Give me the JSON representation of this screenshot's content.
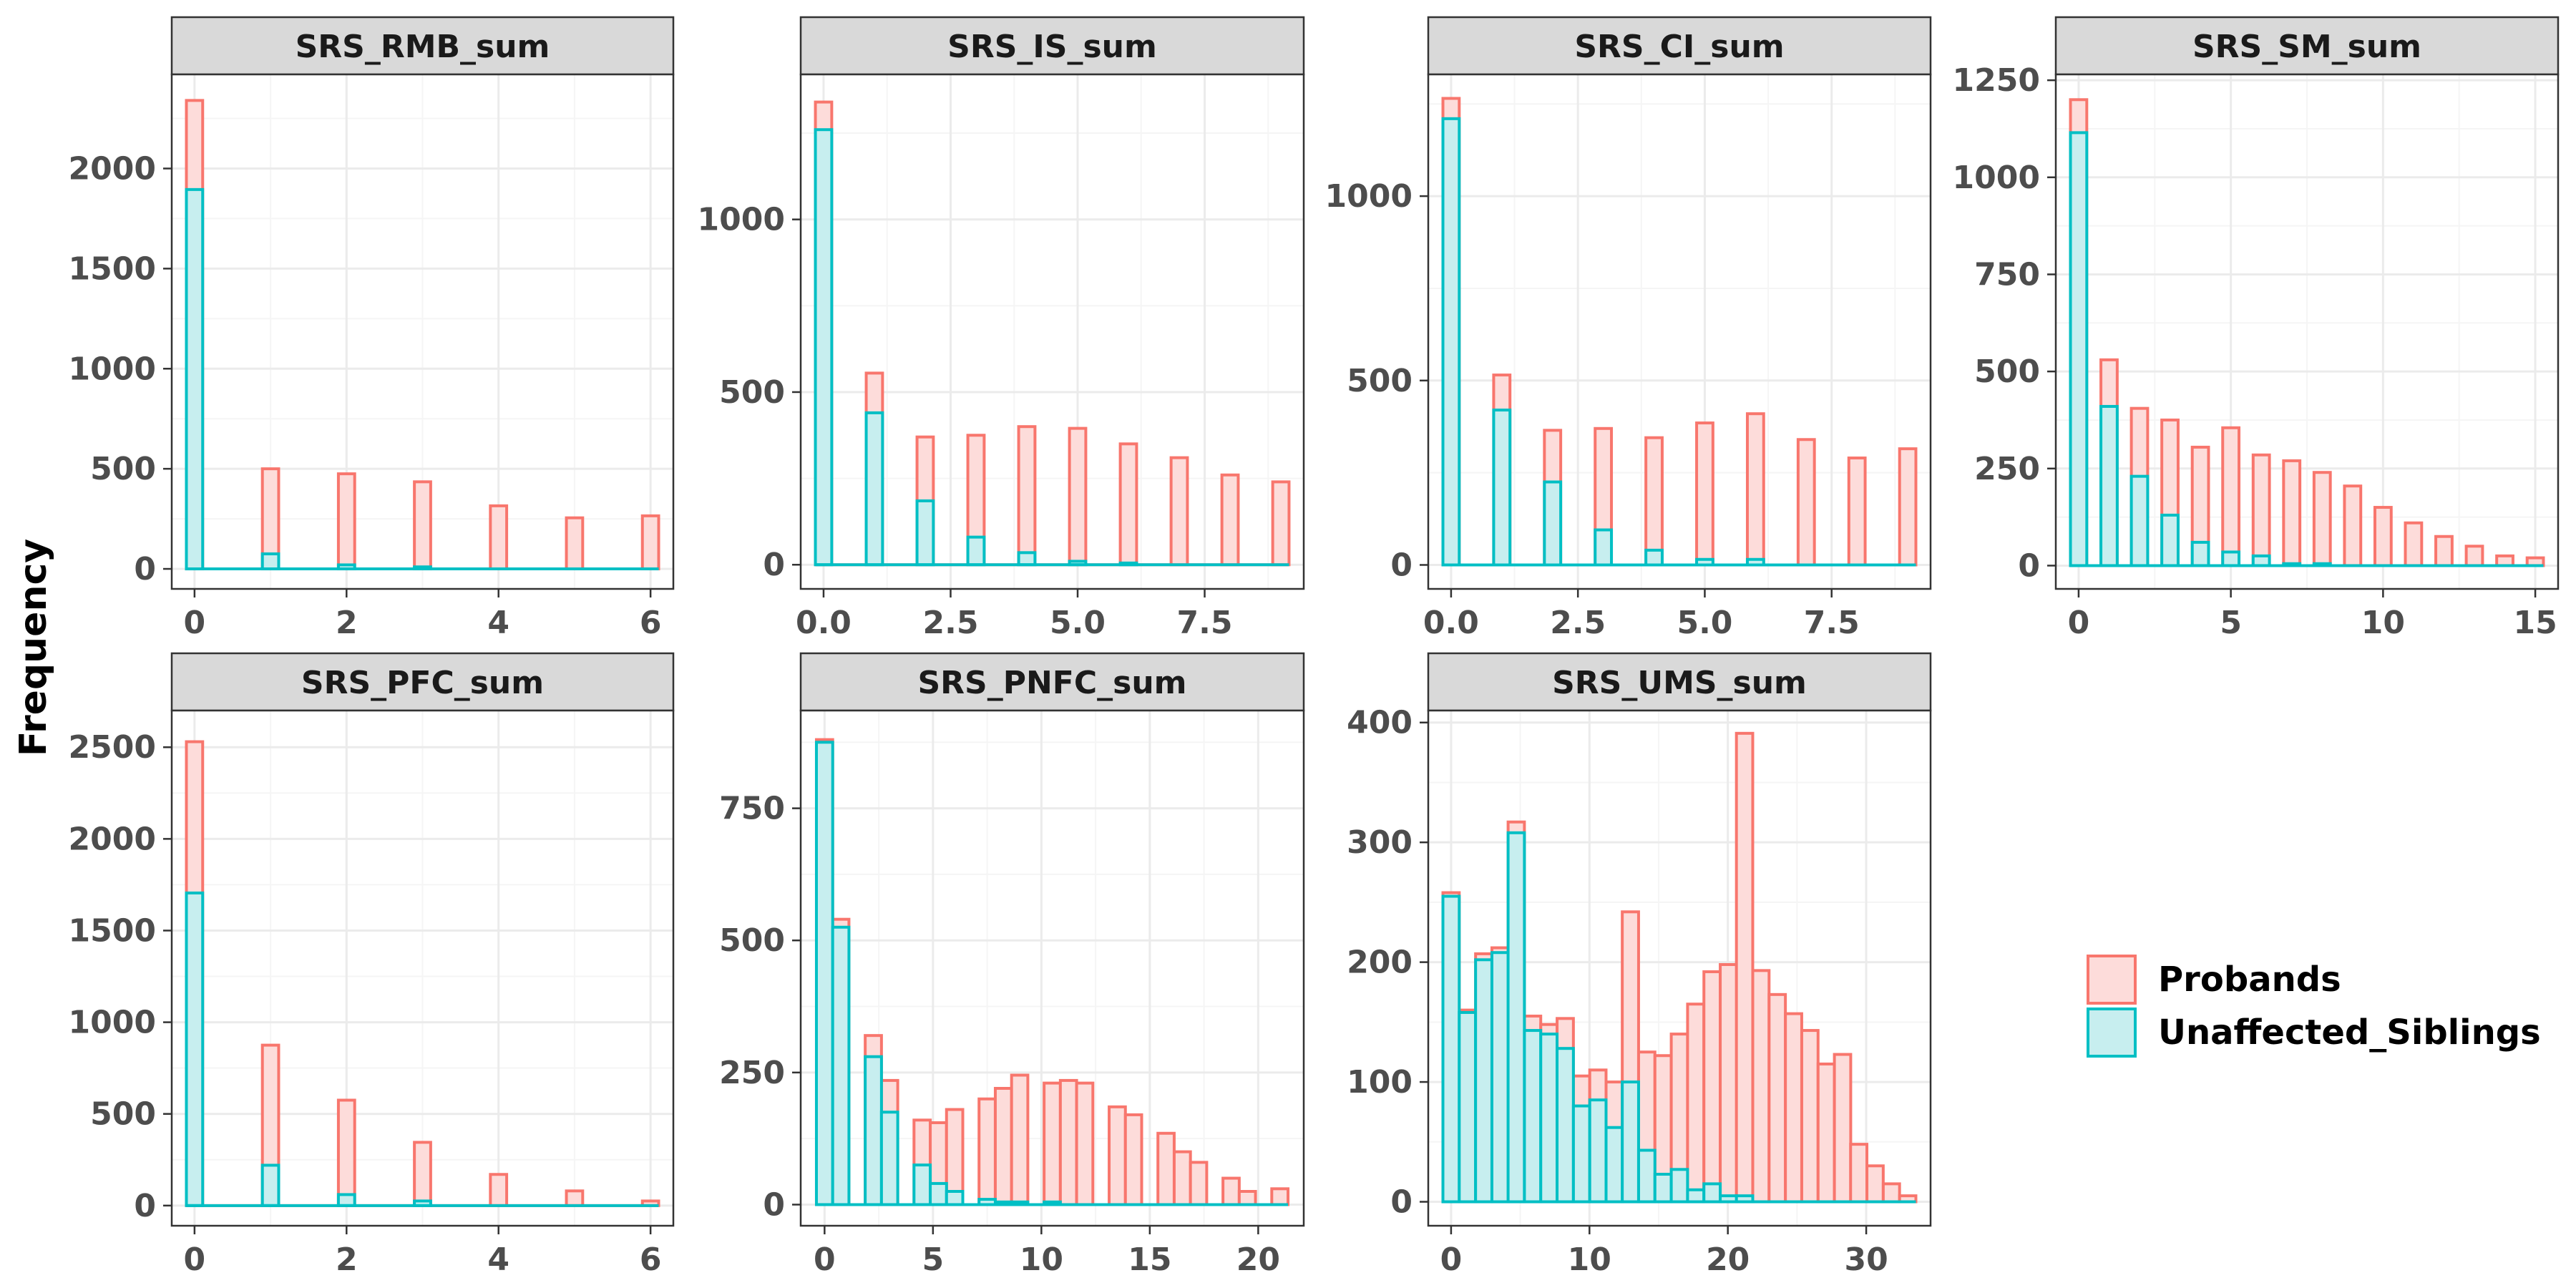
{
  "colors": {
    "probands_line": "#F8766D",
    "probands_fill": "#FDDCDA",
    "siblings_line": "#00BFC4",
    "siblings_fill": "#C7EEEF",
    "strip_bg": "#D9D9D9",
    "grid_major": "#EBEBEB",
    "grid_minor": "#F5F5F5",
    "panel_border": "#333333",
    "tick_label": "#4D4D4D"
  },
  "y_axis_title": "Frequency",
  "legend": {
    "placement": "right",
    "entries": [
      "Probands",
      "Unaffected_Siblings"
    ]
  },
  "chart_data": [
    {
      "type": "bar",
      "title": "SRS_RMB_sum",
      "xlim": [
        -0.3,
        6.3
      ],
      "ylim": [
        -100,
        2470
      ],
      "xticks": [
        {
          "v": 0,
          "label": "0"
        },
        {
          "v": 2,
          "label": "2"
        },
        {
          "v": 4,
          "label": "4"
        },
        {
          "v": 6,
          "label": "6"
        }
      ],
      "yticks": [
        {
          "v": 0,
          "label": "0"
        },
        {
          "v": 500,
          "label": "500"
        },
        {
          "v": 1000,
          "label": "1000"
        },
        {
          "v": 1500,
          "label": "1500"
        },
        {
          "v": 2000,
          "label": "2000"
        }
      ],
      "bin_width": 0.2143,
      "x": [
        0,
        1,
        2,
        3,
        4,
        5,
        6
      ],
      "series": [
        {
          "name": "Probands",
          "values": [
            2340,
            500,
            475,
            435,
            315,
            255,
            265
          ]
        },
        {
          "name": "Unaffected_Siblings",
          "values": [
            1895,
            75,
            20,
            10,
            0,
            0,
            0
          ]
        }
      ]
    },
    {
      "type": "bar",
      "title": "SRS_IS_sum",
      "xlim": [
        -0.45,
        9.45
      ],
      "ylim": [
        -70,
        1420
      ],
      "xticks": [
        {
          "v": 0,
          "label": "0.0"
        },
        {
          "v": 2.5,
          "label": "2.5"
        },
        {
          "v": 5,
          "label": "5.0"
        },
        {
          "v": 7.5,
          "label": "7.5"
        }
      ],
      "yticks": [
        {
          "v": 0,
          "label": "0"
        },
        {
          "v": 500,
          "label": "500"
        },
        {
          "v": 1000,
          "label": "1000"
        }
      ],
      "bin_width": 0.3214,
      "x": [
        0,
        1,
        2,
        3,
        4,
        5,
        6,
        7,
        8,
        9
      ],
      "series": [
        {
          "name": "Probands",
          "values": [
            1340,
            555,
            370,
            375,
            400,
            395,
            350,
            310,
            260,
            240
          ]
        },
        {
          "name": "Unaffected_Siblings",
          "values": [
            1260,
            440,
            185,
            80,
            35,
            10,
            5,
            0,
            0,
            0
          ]
        }
      ]
    },
    {
      "type": "bar",
      "title": "SRS_CI_sum",
      "xlim": [
        -0.45,
        9.45
      ],
      "ylim": [
        -65,
        1330
      ],
      "xticks": [
        {
          "v": 0,
          "label": "0.0"
        },
        {
          "v": 2.5,
          "label": "2.5"
        },
        {
          "v": 5,
          "label": "5.0"
        },
        {
          "v": 7.5,
          "label": "7.5"
        }
      ],
      "yticks": [
        {
          "v": 0,
          "label": "0"
        },
        {
          "v": 500,
          "label": "500"
        },
        {
          "v": 1000,
          "label": "1000"
        }
      ],
      "bin_width": 0.3214,
      "x": [
        0,
        1,
        2,
        3,
        4,
        5,
        6,
        7,
        8,
        9
      ],
      "series": [
        {
          "name": "Probands",
          "values": [
            1265,
            515,
            365,
            370,
            345,
            385,
            410,
            340,
            290,
            315
          ]
        },
        {
          "name": "Unaffected_Siblings",
          "values": [
            1210,
            420,
            225,
            95,
            40,
            15,
            15,
            0,
            0,
            0
          ]
        }
      ]
    },
    {
      "type": "bar",
      "title": "SRS_SM_sum",
      "xlim": [
        -0.75,
        15.75
      ],
      "ylim": [
        -60,
        1265
      ],
      "xticks": [
        {
          "v": 0,
          "label": "0"
        },
        {
          "v": 5,
          "label": "5"
        },
        {
          "v": 10,
          "label": "10"
        },
        {
          "v": 15,
          "label": "15"
        }
      ],
      "yticks": [
        {
          "v": 0,
          "label": "0"
        },
        {
          "v": 250,
          "label": "250"
        },
        {
          "v": 500,
          "label": "500"
        },
        {
          "v": 750,
          "label": "750"
        },
        {
          "v": 1000,
          "label": "1000"
        },
        {
          "v": 1250,
          "label": "1250"
        }
      ],
      "bin_width": 0.5357,
      "x": [
        0,
        1,
        2,
        3,
        4,
        5,
        6,
        7,
        8,
        9,
        10,
        11,
        12,
        13,
        14,
        15
      ],
      "series": [
        {
          "name": "Probands",
          "values": [
            1200,
            530,
            405,
            375,
            305,
            355,
            285,
            270,
            240,
            205,
            150,
            110,
            75,
            50,
            25,
            20
          ]
        },
        {
          "name": "Unaffected_Siblings",
          "values": [
            1115,
            410,
            230,
            130,
            60,
            35,
            25,
            5,
            5,
            0,
            0,
            0,
            0,
            0,
            0,
            0
          ]
        }
      ]
    },
    {
      "type": "bar",
      "title": "SRS_PFC_sum",
      "xlim": [
        -0.3,
        6.3
      ],
      "ylim": [
        -110,
        2700
      ],
      "xticks": [
        {
          "v": 0,
          "label": "0"
        },
        {
          "v": 2,
          "label": "2"
        },
        {
          "v": 4,
          "label": "4"
        },
        {
          "v": 6,
          "label": "6"
        }
      ],
      "yticks": [
        {
          "v": 0,
          "label": "0"
        },
        {
          "v": 500,
          "label": "500"
        },
        {
          "v": 1000,
          "label": "1000"
        },
        {
          "v": 1500,
          "label": "1500"
        },
        {
          "v": 2000,
          "label": "2000"
        },
        {
          "v": 2500,
          "label": "2500"
        }
      ],
      "bin_width": 0.2143,
      "x": [
        0,
        1,
        2,
        3,
        4,
        5,
        6
      ],
      "series": [
        {
          "name": "Probands",
          "values": [
            2530,
            875,
            575,
            345,
            170,
            80,
            25
          ]
        },
        {
          "name": "Unaffected_Siblings",
          "values": [
            1705,
            220,
            60,
            25,
            0,
            0,
            0
          ]
        }
      ]
    },
    {
      "type": "bar",
      "title": "SRS_PNFC_sum",
      "xlim": [
        -1.1,
        22.1
      ],
      "ylim": [
        -40,
        935
      ],
      "xticks": [
        {
          "v": 0,
          "label": "0"
        },
        {
          "v": 5,
          "label": "5"
        },
        {
          "v": 10,
          "label": "10"
        },
        {
          "v": 15,
          "label": "15"
        },
        {
          "v": 20,
          "label": "20"
        }
      ],
      "yticks": [
        {
          "v": 0,
          "label": "0"
        },
        {
          "v": 250,
          "label": "250"
        },
        {
          "v": 500,
          "label": "500"
        },
        {
          "v": 750,
          "label": "750"
        }
      ],
      "bin_width": 0.75,
      "x": [
        0,
        0.75,
        2.25,
        3,
        4.5,
        5.25,
        6,
        7.5,
        8.25,
        9,
        10.5,
        11.25,
        12,
        13.5,
        14.25,
        15.75,
        16.5,
        17.25,
        18.75,
        19.5,
        21
      ],
      "series": [
        {
          "name": "Probands",
          "values": [
            880,
            540,
            320,
            235,
            160,
            155,
            180,
            200,
            220,
            245,
            230,
            235,
            230,
            185,
            170,
            135,
            100,
            80,
            50,
            25,
            30
          ]
        },
        {
          "name": "Unaffected_Siblings",
          "values": [
            875,
            525,
            280,
            175,
            75,
            40,
            25,
            10,
            5,
            5,
            5,
            0,
            0,
            0,
            0,
            0,
            0,
            0,
            0,
            0,
            0
          ]
        }
      ]
    },
    {
      "type": "bar",
      "title": "SRS_UMS_sum",
      "xlim": [
        -1.65,
        34.65
      ],
      "ylim": [
        -20,
        410
      ],
      "xticks": [
        {
          "v": 0,
          "label": "0"
        },
        {
          "v": 10,
          "label": "10"
        },
        {
          "v": 20,
          "label": "20"
        },
        {
          "v": 30,
          "label": "30"
        }
      ],
      "yticks": [
        {
          "v": 0,
          "label": "0"
        },
        {
          "v": 100,
          "label": "100"
        },
        {
          "v": 200,
          "label": "200"
        },
        {
          "v": 300,
          "label": "300"
        },
        {
          "v": 400,
          "label": "400"
        }
      ],
      "bin_width": 1.1786,
      "x": [
        0,
        1.18,
        2.36,
        3.54,
        4.71,
        5.89,
        7.07,
        8.25,
        9.43,
        10.61,
        11.79,
        12.96,
        14.14,
        15.32,
        16.5,
        17.68,
        18.86,
        20.04,
        21.21,
        22.39,
        23.57,
        24.75,
        25.93,
        27.11,
        28.29,
        29.46,
        30.64,
        31.82,
        33
      ],
      "series": [
        {
          "name": "Probands",
          "values": [
            258,
            160,
            207,
            212,
            317,
            155,
            148,
            153,
            105,
            110,
            100,
            242,
            125,
            122,
            140,
            165,
            192,
            198,
            391,
            193,
            173,
            157,
            143,
            115,
            123,
            48,
            30,
            15,
            5
          ]
        },
        {
          "name": "Unaffected_Siblings",
          "values": [
            255,
            158,
            202,
            208,
            308,
            143,
            140,
            128,
            80,
            85,
            62,
            100,
            43,
            23,
            27,
            10,
            15,
            5,
            5,
            0,
            0,
            0,
            0,
            0,
            0,
            0,
            0,
            0,
            0
          ]
        }
      ]
    }
  ]
}
